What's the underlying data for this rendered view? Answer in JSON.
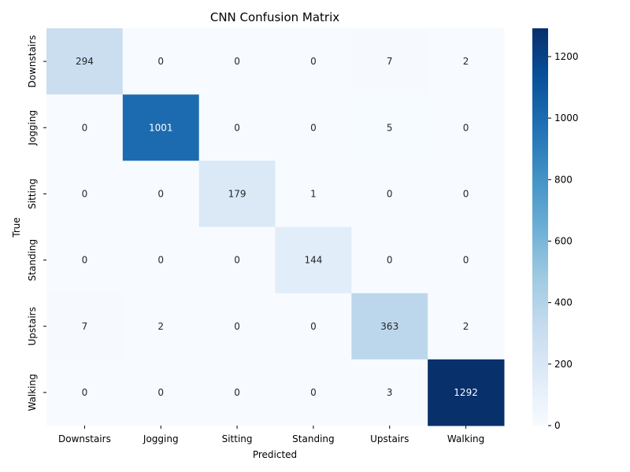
{
  "chart_data": {
    "type": "heatmap",
    "title": "CNN Confusion Matrix",
    "xlabel": "Predicted",
    "ylabel": "True",
    "x_categories": [
      "Downstairs",
      "Jogging",
      "Sitting",
      "Standing",
      "Upstairs",
      "Walking"
    ],
    "y_categories": [
      "Downstairs",
      "Jogging",
      "Sitting",
      "Standing",
      "Upstairs",
      "Walking"
    ],
    "values": [
      [
        294,
        0,
        0,
        0,
        7,
        2
      ],
      [
        0,
        1001,
        0,
        0,
        5,
        0
      ],
      [
        0,
        0,
        179,
        1,
        0,
        0
      ],
      [
        0,
        0,
        0,
        144,
        0,
        0
      ],
      [
        7,
        2,
        0,
        0,
        363,
        2
      ],
      [
        0,
        0,
        0,
        0,
        3,
        1292
      ]
    ],
    "colorbar": {
      "min": 0,
      "max": 1292,
      "ticks": [
        0,
        200,
        400,
        600,
        800,
        1000,
        1200
      ]
    },
    "colormap": "Blues",
    "grid": false
  }
}
